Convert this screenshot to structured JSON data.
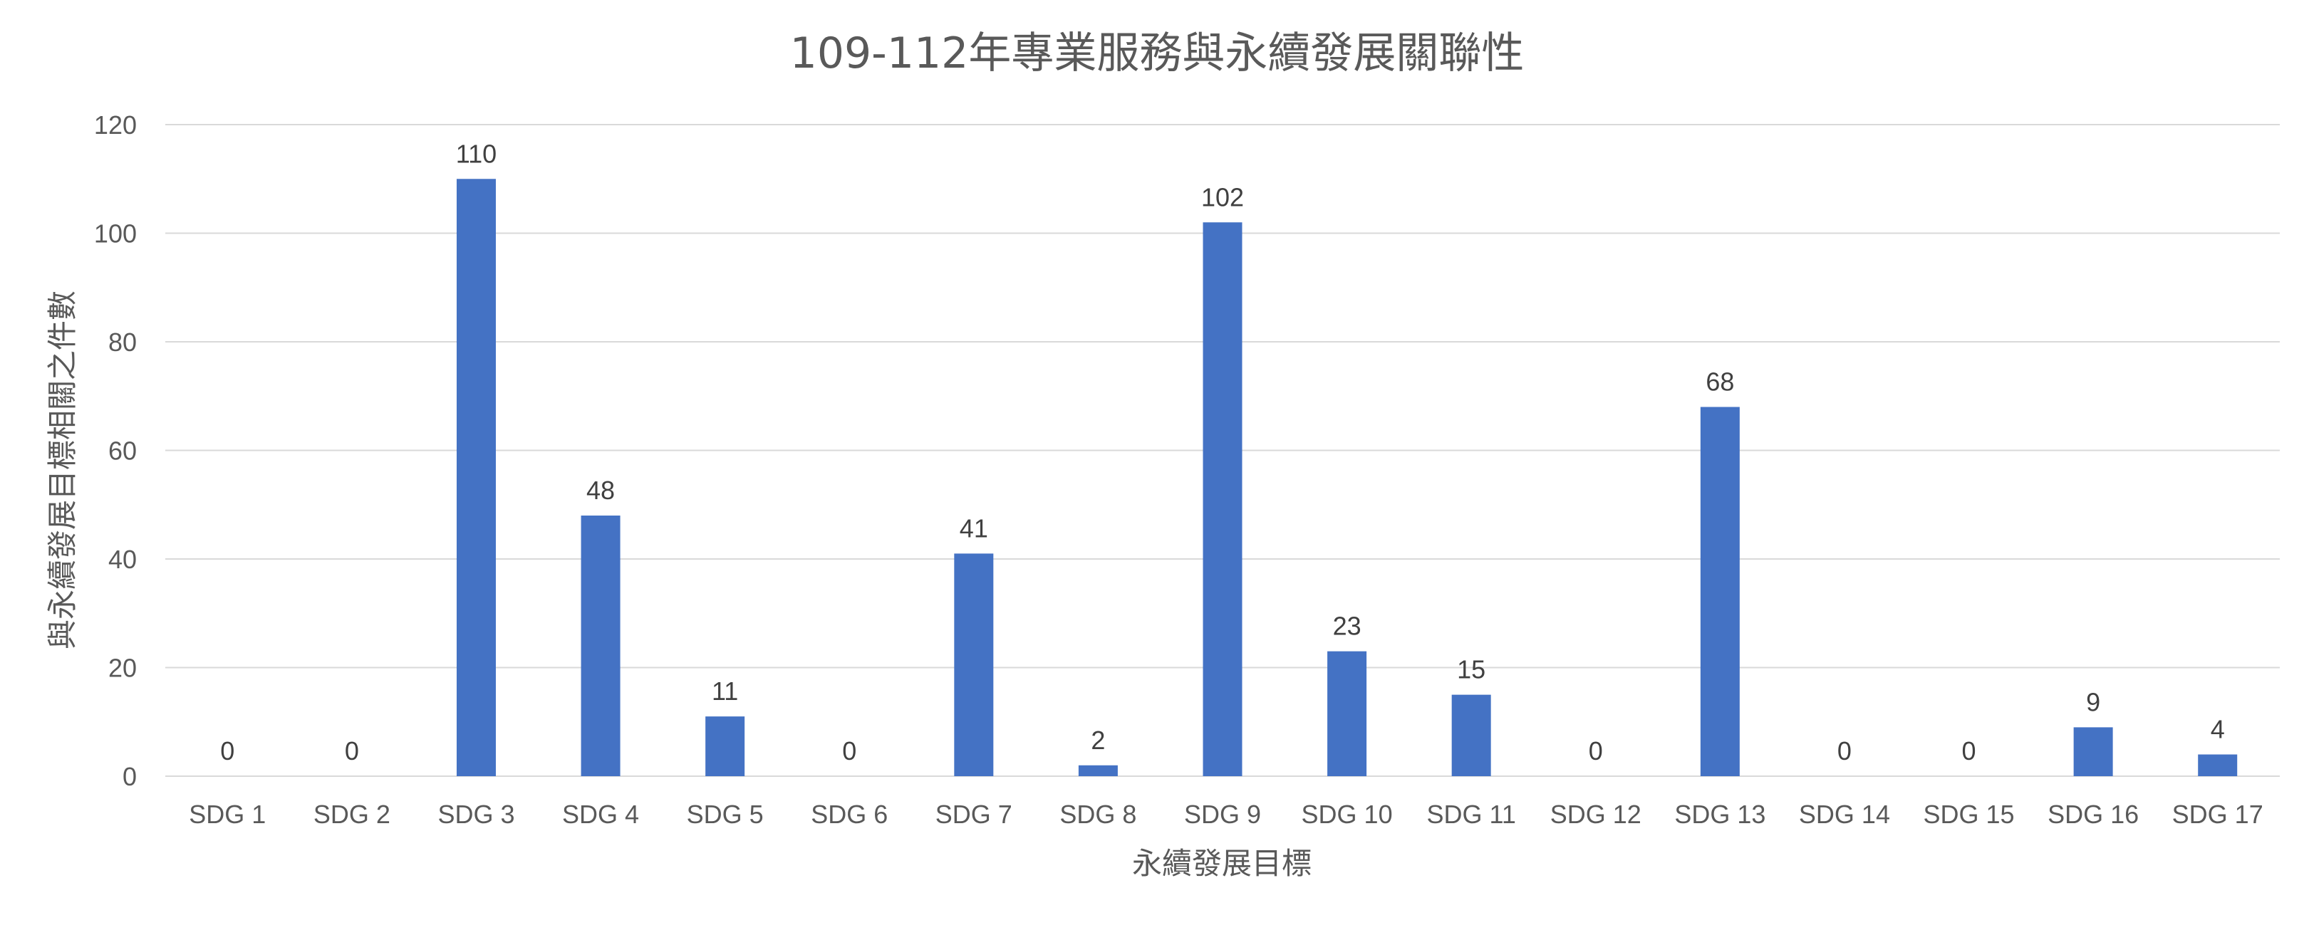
{
  "chart_data": {
    "type": "bar",
    "title": "109-112年專業服務與永續發展關聯性",
    "xlabel": "永續發展目標",
    "ylabel": "與永續發展目標相關之件數",
    "categories": [
      "SDG 1",
      "SDG 2",
      "SDG 3",
      "SDG 4",
      "SDG 5",
      "SDG 6",
      "SDG 7",
      "SDG 8",
      "SDG 9",
      "SDG 10",
      "SDG 11",
      "SDG 12",
      "SDG 13",
      "SDG 14",
      "SDG 15",
      "SDG 16",
      "SDG 17"
    ],
    "values": [
      0,
      0,
      110,
      48,
      11,
      0,
      41,
      2,
      102,
      23,
      15,
      0,
      68,
      0,
      0,
      9,
      4
    ],
    "ylim": [
      0,
      120
    ],
    "yticks": [
      0,
      20,
      40,
      60,
      80,
      100,
      120
    ],
    "grid": true,
    "legend": "none",
    "bar_color": "#4472c4",
    "data_labels": true
  }
}
